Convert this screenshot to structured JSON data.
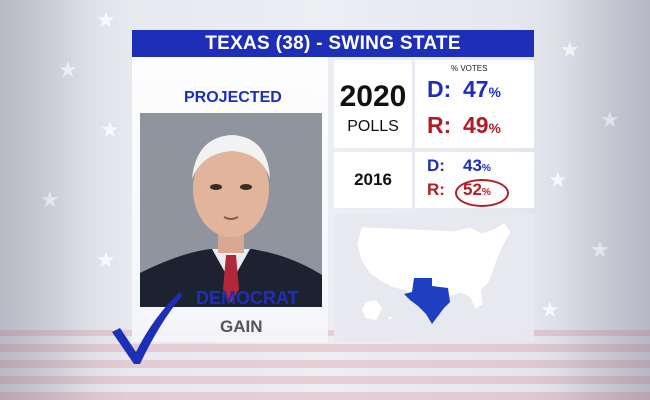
{
  "title": "TEXAS (38)  - SWING STATE",
  "projected_label": "PROJECTED",
  "result": {
    "party": "DEMOCRAT",
    "status": "GAIN"
  },
  "polls_2020": {
    "year": "2020",
    "sub": "POLLS",
    "votes_label": "% VOTES",
    "d_label": "D:",
    "d_value": "47",
    "r_label": "R:",
    "r_value": "49",
    "pct": "%"
  },
  "results_2016": {
    "year": "2016",
    "d_label": "D:",
    "d_value": "43",
    "r_label": "R:",
    "r_value": "52",
    "pct": "%"
  },
  "colors": {
    "banner_blue": "#1e2fb7",
    "republican_red": "#b01e24",
    "map_highlight": "#1e3fbf"
  },
  "icons": {
    "check": "checkmark-icon",
    "map": "us-map-texas-highlighted"
  }
}
